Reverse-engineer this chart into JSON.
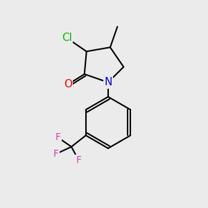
{
  "bg_color": "#ebebeb",
  "atom_colors": {
    "Cl": "#00bb00",
    "O": "#ff0000",
    "N": "#0000ee",
    "F": "#cc44aa",
    "C": "#000000"
  },
  "bond_width": 1.5,
  "font_size_atoms": 11,
  "font_size_small": 10,
  "xlim": [
    0,
    10
  ],
  "ylim": [
    0,
    10
  ]
}
